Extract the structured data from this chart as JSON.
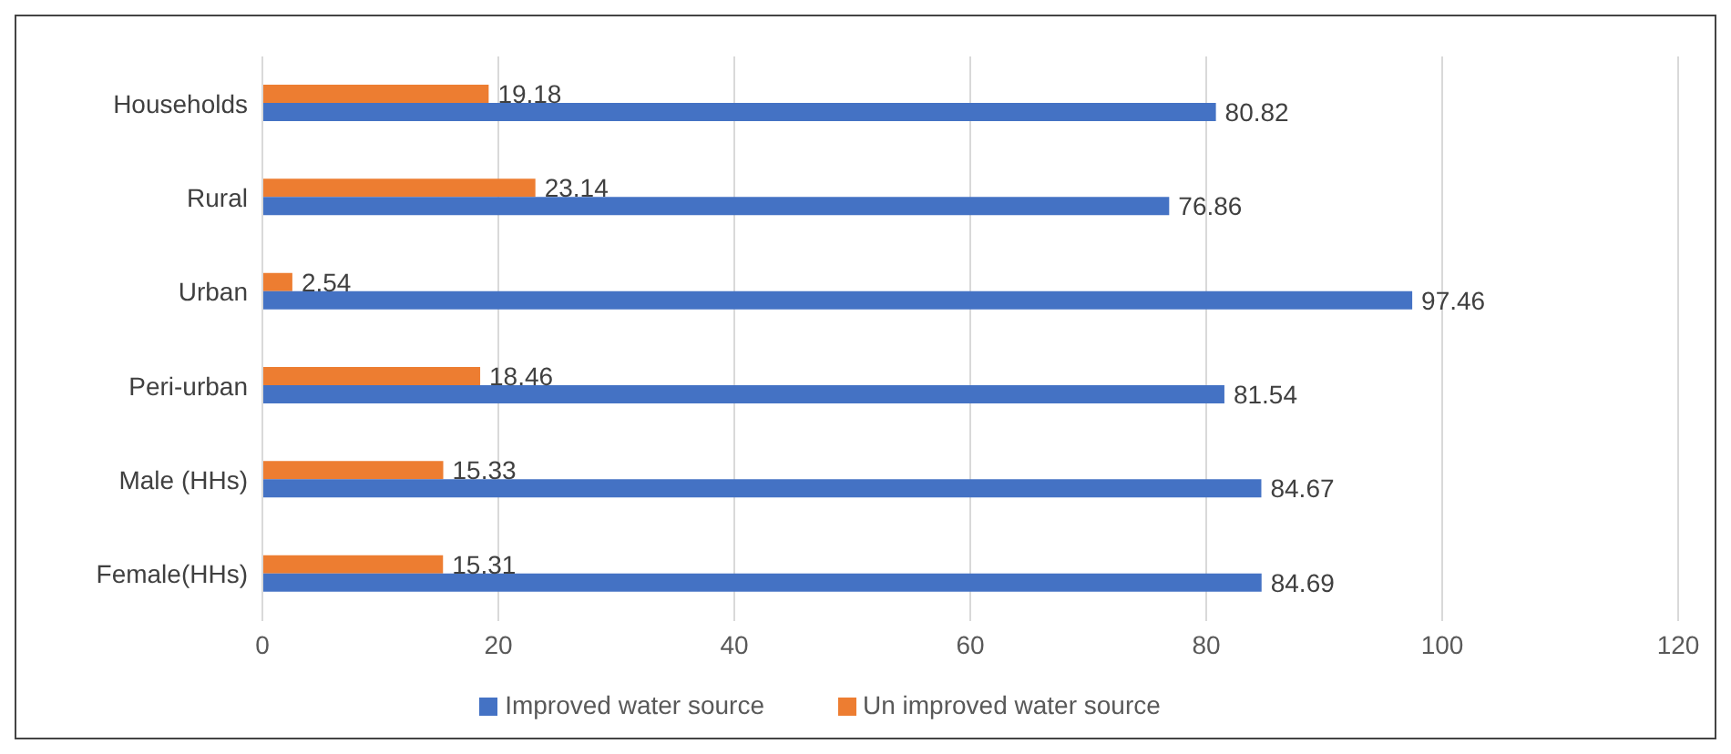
{
  "chart_data": {
    "type": "bar",
    "orientation": "horizontal",
    "categories": [
      "Households",
      "Rural",
      "Urban",
      "Peri-urban",
      "Male (HHs)",
      "Female(HHs)"
    ],
    "series": [
      {
        "name": "Un improved water source",
        "color": "#ed7d31",
        "values": [
          19.18,
          23.14,
          2.54,
          18.46,
          15.33,
          15.31
        ]
      },
      {
        "name": "Improved water source",
        "color": "#4472c4",
        "values": [
          80.82,
          76.86,
          97.46,
          81.54,
          84.67,
          84.69
        ]
      }
    ],
    "xlim": [
      0,
      120
    ],
    "xticks": [
      0,
      20,
      40,
      60,
      80,
      100,
      120
    ],
    "grid": "x",
    "legend": "bottom",
    "data_labels": true
  }
}
